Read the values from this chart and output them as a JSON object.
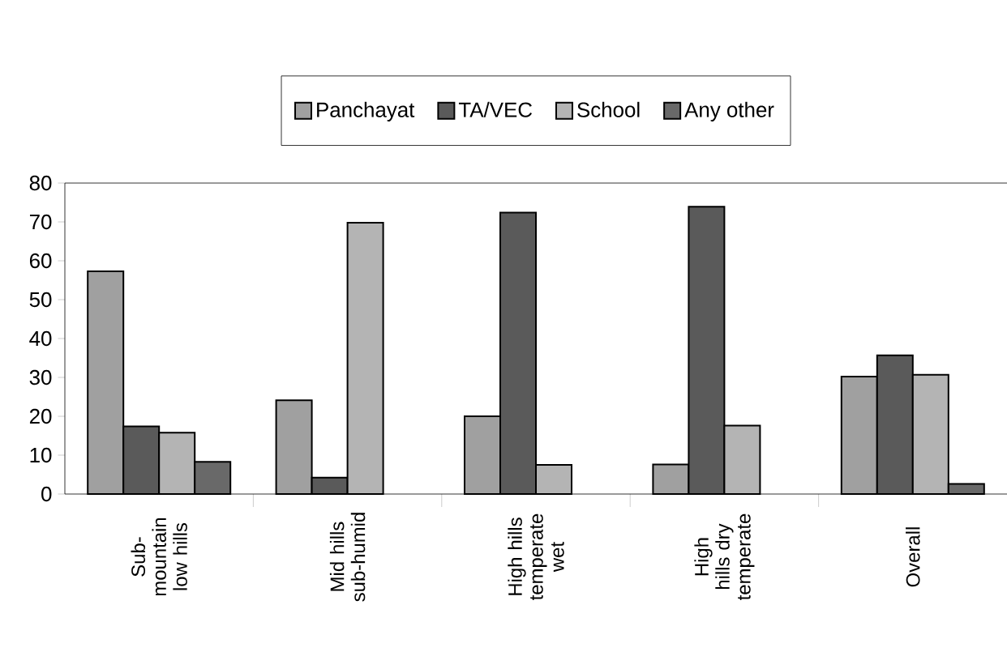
{
  "chart_data": {
    "type": "bar",
    "categories": [
      "Sub-mountain low hills",
      "Mid hills sub-humid",
      "High hills temperate wet",
      "High hills dry temperate",
      "Overall"
    ],
    "series": [
      {
        "name": "Panchayat",
        "color": "#a0a0a0",
        "values": [
          57.3,
          24.1,
          20,
          7.6,
          30.2
        ]
      },
      {
        "name": "TA/VEC",
        "color": "#5a5a5a",
        "values": [
          17.4,
          4.2,
          72.4,
          73.9,
          35.7
        ]
      },
      {
        "name": "School",
        "color": "#b4b4b4",
        "values": [
          15.8,
          69.8,
          7.5,
          17.6,
          30.7
        ]
      },
      {
        "name": "Any other",
        "color": "#696969",
        "values": [
          8.3,
          null,
          null,
          null,
          2.6
        ]
      }
    ],
    "ylim": [
      0,
      80
    ],
    "yticks": [
      0,
      10,
      20,
      30,
      40,
      50,
      60,
      70,
      80
    ],
    "legend": "top",
    "grid": false
  }
}
